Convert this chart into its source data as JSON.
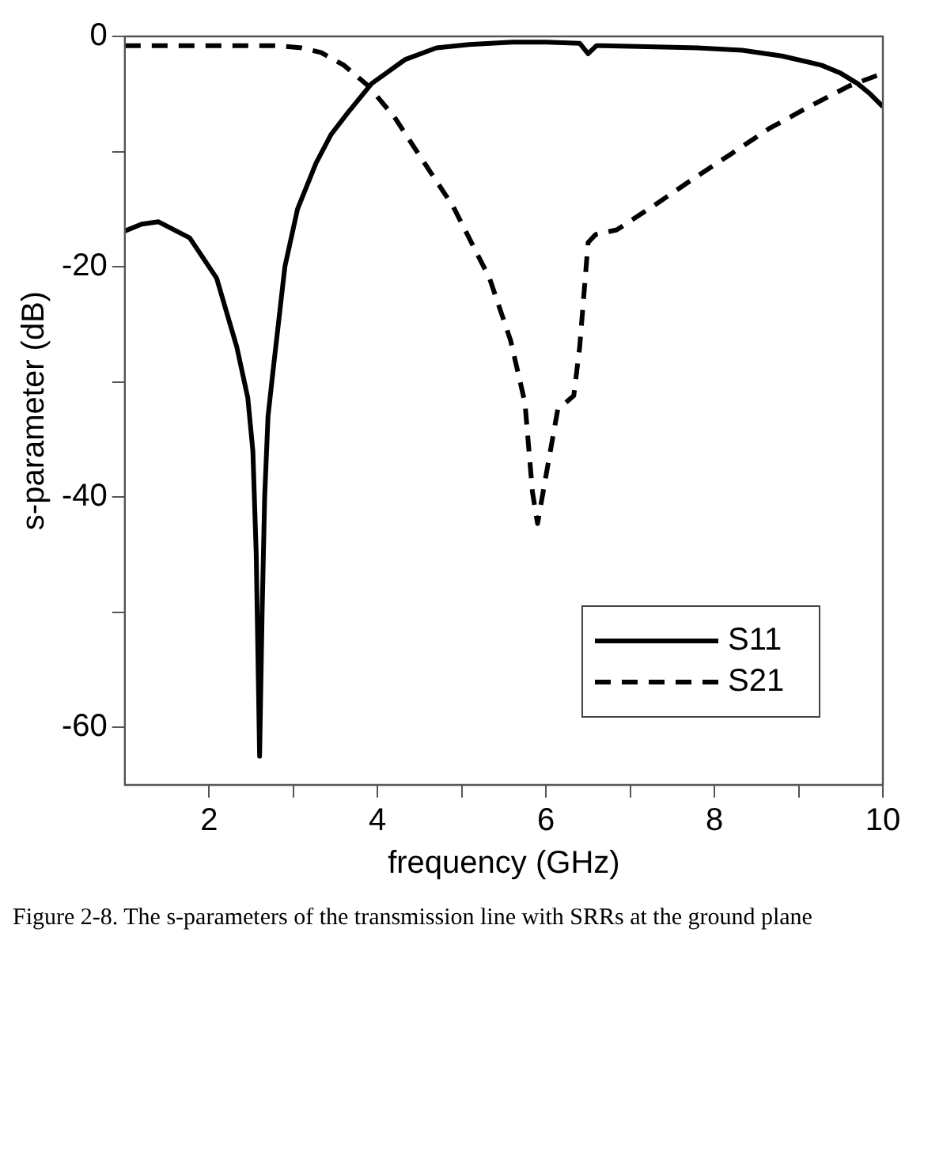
{
  "chart_data": {
    "type": "line",
    "xlabel": "frequency (GHz)",
    "ylabel": "s-parameter (dB)",
    "xlim": [
      1,
      10
    ],
    "ylim": [
      -65,
      0
    ],
    "xticks": [
      2,
      {
        "value": 3,
        "label": null
      },
      4,
      {
        "value": 5,
        "label": null
      },
      6,
      {
        "value": 7,
        "label": null
      },
      8,
      {
        "value": 9,
        "label": null
      },
      10
    ],
    "yticks": [
      0,
      {
        "value": -10,
        "label": null
      },
      -20,
      {
        "value": -30,
        "label": null
      },
      -40,
      {
        "value": -50,
        "label": null
      },
      -60
    ],
    "grid": false,
    "legend": "bottom right",
    "marker": "none",
    "series": [
      {
        "name": "S11",
        "color": "#000000",
        "line_style": "solid",
        "x": [
          1,
          1.2,
          1.4,
          1.77,
          2.09,
          2.33,
          2.46,
          2.52,
          2.56,
          2.6,
          2.63,
          2.66,
          2.7,
          2.76,
          2.9,
          3.05,
          3.27,
          3.45,
          3.65,
          3.93,
          4.33,
          4.7,
          5.09,
          5.6,
          6,
          6.4,
          6.5,
          6.6,
          7.2,
          7.8,
          8.33,
          8.8,
          9.27,
          9.5,
          9.7,
          9.85,
          10
        ],
        "values": [
          -16.9,
          -16.3,
          -16.1,
          -17.5,
          -21,
          -27,
          -31.4,
          -36,
          -45,
          -62.5,
          -50,
          -40,
          -33,
          -29,
          -20,
          -15,
          -11,
          -8.5,
          -6.6,
          -4.1,
          -2,
          -1,
          -0.7,
          -0.5,
          -0.5,
          -0.6,
          -1.5,
          -0.8,
          -0.9,
          -1,
          -1.2,
          -1.7,
          -2.5,
          -3.2,
          -4.1,
          -5,
          -6.1
        ]
      },
      {
        "name": "S21",
        "color": "#000000",
        "line_style": "dashed",
        "x": [
          1,
          1.5,
          2,
          2.5,
          2.8,
          3.1,
          3.33,
          3.6,
          3.89,
          4.2,
          4.45,
          4.9,
          5.33,
          5.58,
          5.75,
          5.84,
          5.9,
          6.03,
          6.14,
          6.33,
          6.4,
          6.5,
          6.59,
          6.84,
          7.3,
          7.72,
          8.2,
          8.65,
          9.1,
          9.6,
          10
        ],
        "values": [
          -0.8,
          -0.8,
          -0.8,
          -0.8,
          -0.8,
          -1,
          -1.4,
          -2.5,
          -4.3,
          -7,
          -9.8,
          -14.8,
          -21,
          -26.4,
          -31.8,
          -39.6,
          -42.3,
          -36.9,
          -32.4,
          -31.2,
          -27,
          -17.9,
          -17.2,
          -16.8,
          -14.6,
          -12.5,
          -10.2,
          -8,
          -6.2,
          -4.3,
          -3.2
        ]
      }
    ],
    "annotations": [
      "Figure 2-8. The s-parameters of the transmission line with SRRs at the ground plane"
    ]
  }
}
